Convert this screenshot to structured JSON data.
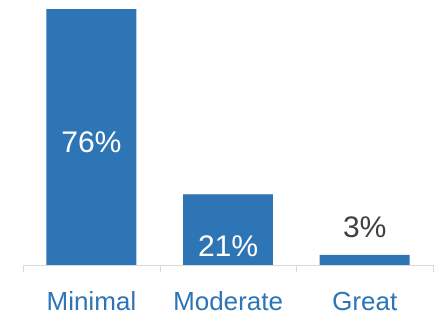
{
  "chart_data": {
    "type": "bar",
    "categories": [
      "Minimal",
      "Moderate",
      "Great"
    ],
    "values": [
      76,
      21,
      3
    ],
    "data_labels": [
      "76%",
      "21%",
      "3%"
    ],
    "title": "",
    "xlabel": "",
    "ylabel": "",
    "ylim": [
      0,
      76
    ],
    "grid": false,
    "legend": "none",
    "colors": {
      "bar": "#2E75B6",
      "axis": "#D9D9D9",
      "label_inside": "#FFFFFF",
      "label_outside": "#404040",
      "category_text": "#2E75B6"
    }
  }
}
